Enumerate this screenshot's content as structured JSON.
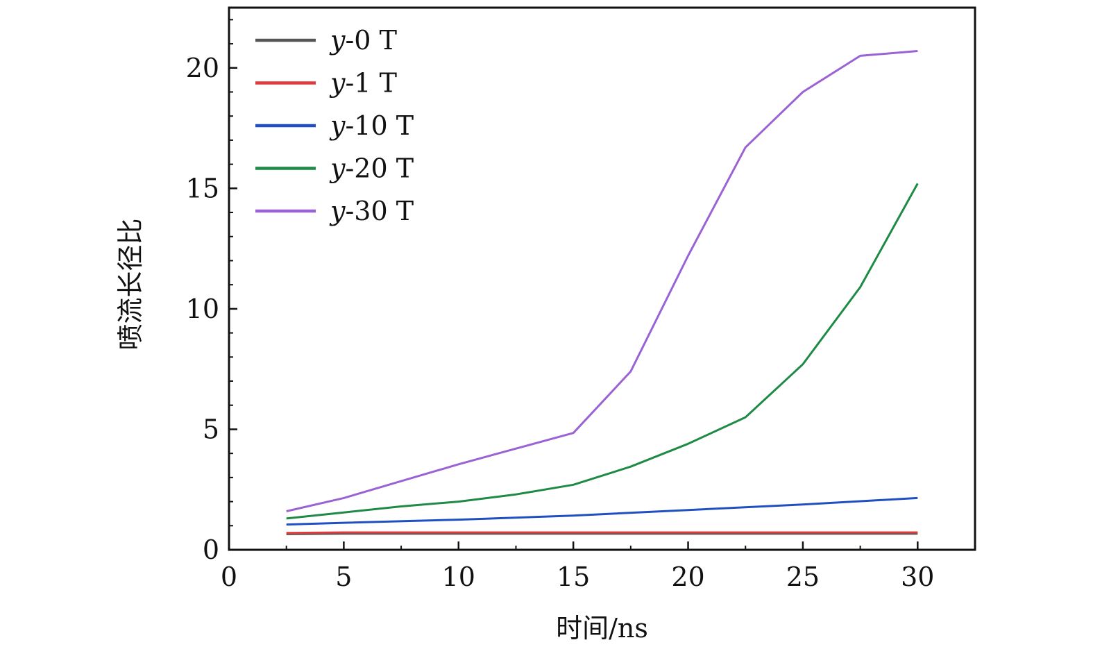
{
  "chart_data": {
    "type": "line",
    "xlabel": "时间/ns",
    "ylabel": "喷流长径比",
    "xlim": [
      0,
      32.5
    ],
    "ylim": [
      0,
      22.5
    ],
    "xticks": [
      0,
      5,
      10,
      15,
      20,
      25,
      30
    ],
    "yticks": [
      0,
      5,
      10,
      15,
      20
    ],
    "grid": false,
    "legend_position": "top-left",
    "series": [
      {
        "name_var": "y",
        "name_rest": "-0 T",
        "color": "#555555",
        "x": [
          2.5,
          5,
          10,
          15,
          20,
          25,
          30
        ],
        "y": [
          0.65,
          0.67,
          0.67,
          0.67,
          0.67,
          0.67,
          0.67
        ]
      },
      {
        "name_var": "y",
        "name_rest": "-1 T",
        "color": "#e03a3a",
        "x": [
          2.5,
          5,
          10,
          15,
          20,
          25,
          30
        ],
        "y": [
          0.7,
          0.72,
          0.72,
          0.72,
          0.72,
          0.72,
          0.72
        ]
      },
      {
        "name_var": "y",
        "name_rest": "-10 T",
        "color": "#1f4fc2",
        "x": [
          2.5,
          5,
          10,
          15,
          20,
          25,
          30
        ],
        "y": [
          1.05,
          1.12,
          1.25,
          1.42,
          1.65,
          1.88,
          2.15
        ]
      },
      {
        "name_var": "y",
        "name_rest": "-20 T",
        "color": "#1e8a45",
        "x": [
          2.5,
          5,
          7.5,
          10,
          12.5,
          15,
          17.5,
          20,
          22.5,
          25,
          27.5,
          30
        ],
        "y": [
          1.3,
          1.55,
          1.8,
          2.0,
          2.3,
          2.7,
          3.45,
          4.4,
          5.5,
          7.7,
          10.9,
          15.2
        ]
      },
      {
        "name_var": "y",
        "name_rest": "-30 T",
        "color": "#9b62d4",
        "x": [
          2.5,
          5,
          7.5,
          10,
          12.5,
          15,
          17.5,
          20,
          22.5,
          25,
          27.5,
          30
        ],
        "y": [
          1.6,
          2.15,
          2.85,
          3.55,
          4.2,
          4.85,
          7.4,
          12.2,
          16.7,
          19.0,
          20.5,
          20.7
        ]
      }
    ]
  }
}
